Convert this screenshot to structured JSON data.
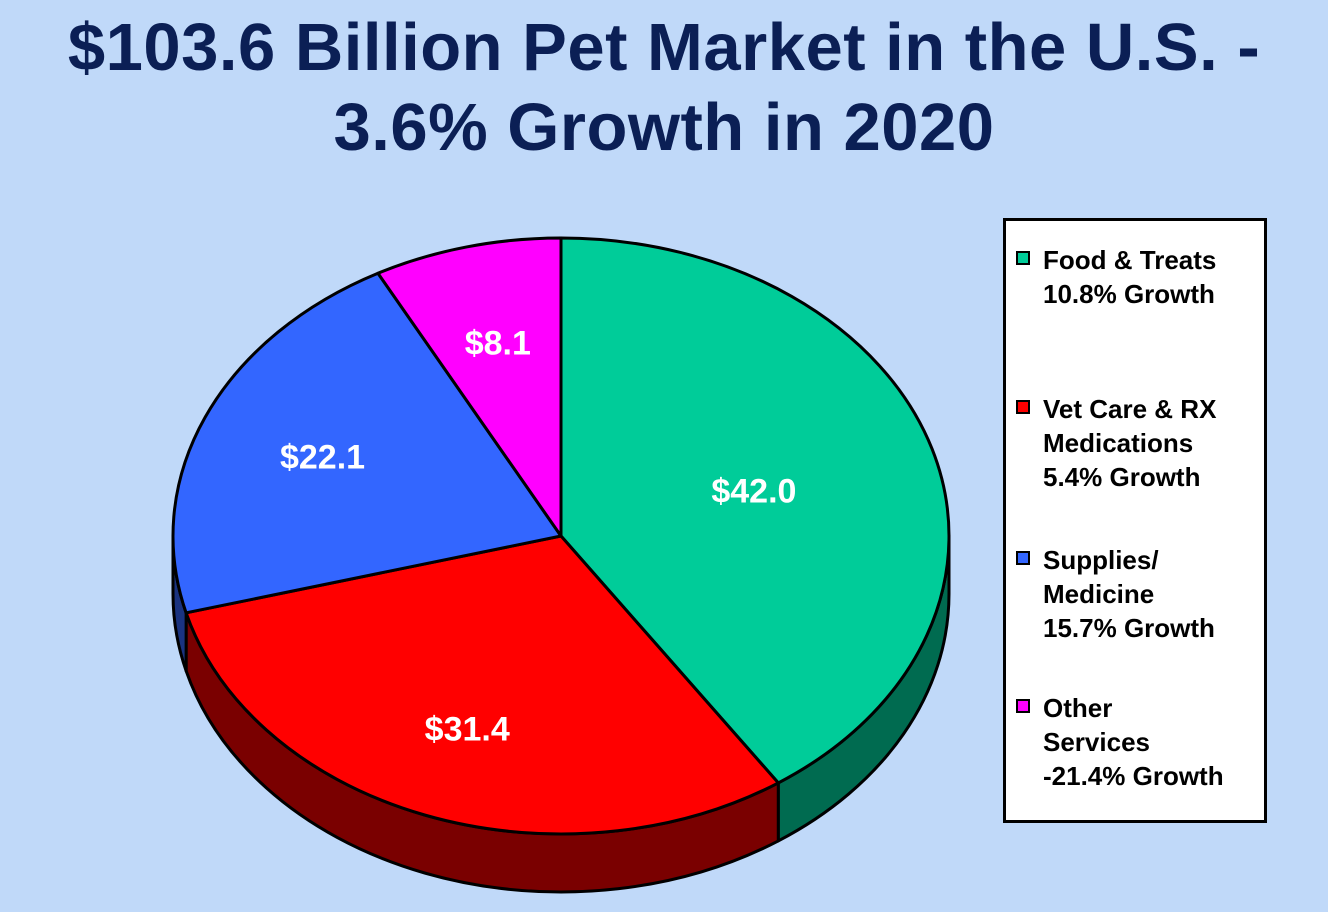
{
  "title": {
    "line1": "$103.6 Billion Pet Market in the U.S. -",
    "line2": "3.6% Growth in 2020"
  },
  "legend": {
    "items": [
      {
        "lines": [
          "Food & Treats",
          "10.8% Growth"
        ],
        "color": "#00cc99"
      },
      {
        "lines": [
          "Vet Care & RX",
          "Medications",
          "5.4% Growth"
        ],
        "color": "#ff0000"
      },
      {
        "lines": [
          "Supplies/",
          "Medicine",
          "15.7% Growth"
        ],
        "color": "#3366ff"
      },
      {
        "lines": [
          "Other",
          "Services",
          "-21.4% Growth"
        ],
        "color": "#ff00ff"
      }
    ]
  },
  "chart_data": {
    "type": "pie",
    "style": "3d",
    "title": "$103.6 Billion Pet Market in the U.S. - 3.6% Growth in 2020",
    "categories": [
      "Food & Treats",
      "Vet Care & RX Medications",
      "Supplies/ Medicine",
      "Other Services"
    ],
    "values": [
      42.0,
      31.4,
      22.1,
      8.1
    ],
    "data_labels": [
      "$42.0",
      "$31.4",
      "$22.1",
      "$8.1"
    ],
    "growth_labels": [
      "10.8% Growth",
      "5.4% Growth",
      "15.7% Growth",
      "-21.4% Growth"
    ],
    "colors": [
      "#00cc99",
      "#ff0000",
      "#3366ff",
      "#ff00ff"
    ],
    "side_colors": [
      "#006b50",
      "#7a0000",
      "#1a3380",
      "#800080"
    ],
    "start_angle": "12 o'clock",
    "direction": "clockwise",
    "legend_position": "right"
  }
}
